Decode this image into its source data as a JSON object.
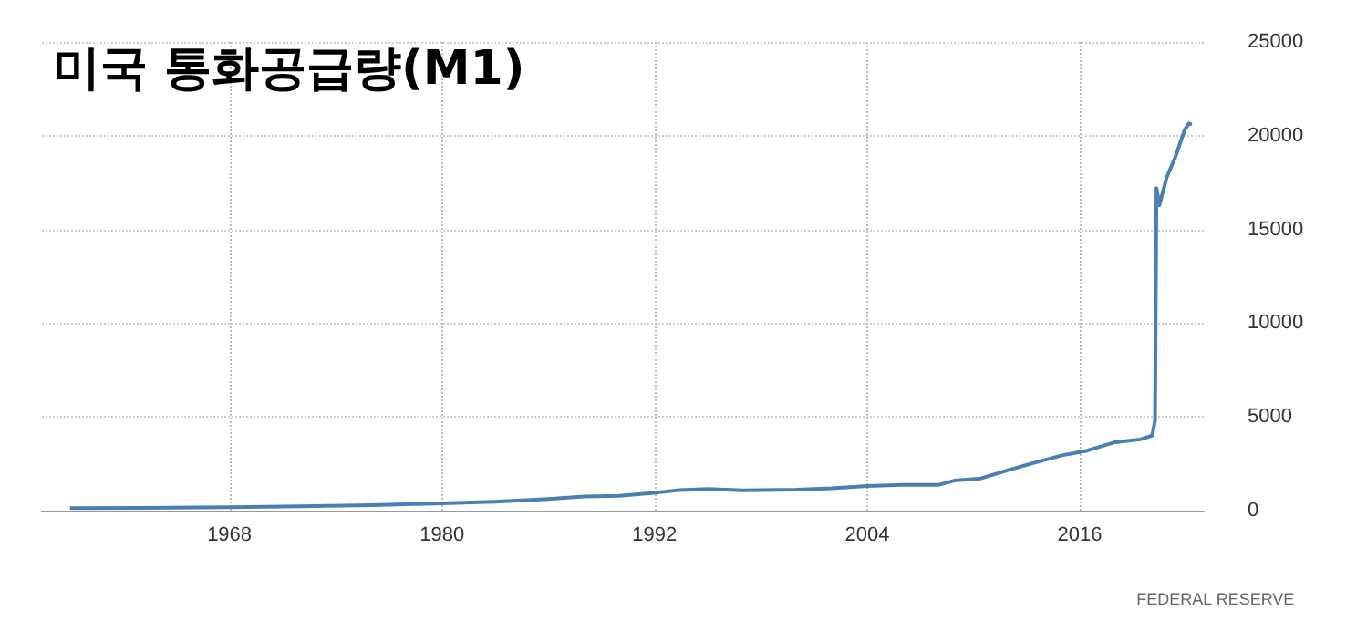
{
  "chart_data": {
    "type": "line",
    "title": "미국 통화공급량(M1)",
    "annotations": [
      "FEDERAL RESERVE"
    ],
    "x": [
      "1959-01",
      "1963-01",
      "1968-01",
      "1972-01",
      "1976-01",
      "1980-01",
      "1983-01",
      "1986-01",
      "1988-01",
      "1990-01",
      "1992-01",
      "1993-06",
      "1995-01",
      "1997-01",
      "2000-01",
      "2002-01",
      "2004-01",
      "2006-01",
      "2008-01",
      "2008-12",
      "2010-06",
      "2011-12",
      "2013-06",
      "2015-01",
      "2016-06",
      "2018-01",
      "2019-06",
      "2020-02",
      "2020-04",
      "2020-05",
      "2020-07",
      "2020-12",
      "2021-06",
      "2021-12",
      "2022-03",
      "2022-05"
    ],
    "series": [
      {
        "color": "#4a7fb5",
        "values": [
          139,
          150,
          185,
          235,
          290,
          385,
          480,
          625,
          750,
          795,
          950,
          1100,
          1150,
          1080,
          1120,
          1190,
          1310,
          1380,
          1370,
          1600,
          1720,
          2150,
          2550,
          2950,
          3200,
          3650,
          3800,
          4000,
          4800,
          17200,
          16300,
          17800,
          18900,
          20300,
          20650,
          20600
        ]
      }
    ],
    "xlim": [
      "1957-06",
      "2023-01"
    ],
    "xticks": [
      "1968",
      "1980",
      "1992",
      "2004",
      "2016"
    ],
    "ylim": [
      0,
      25000
    ],
    "yticks": [
      0,
      5000,
      10000,
      15000,
      20000,
      25000
    ],
    "grid": true,
    "marker": "none",
    "line_style": "solid"
  }
}
